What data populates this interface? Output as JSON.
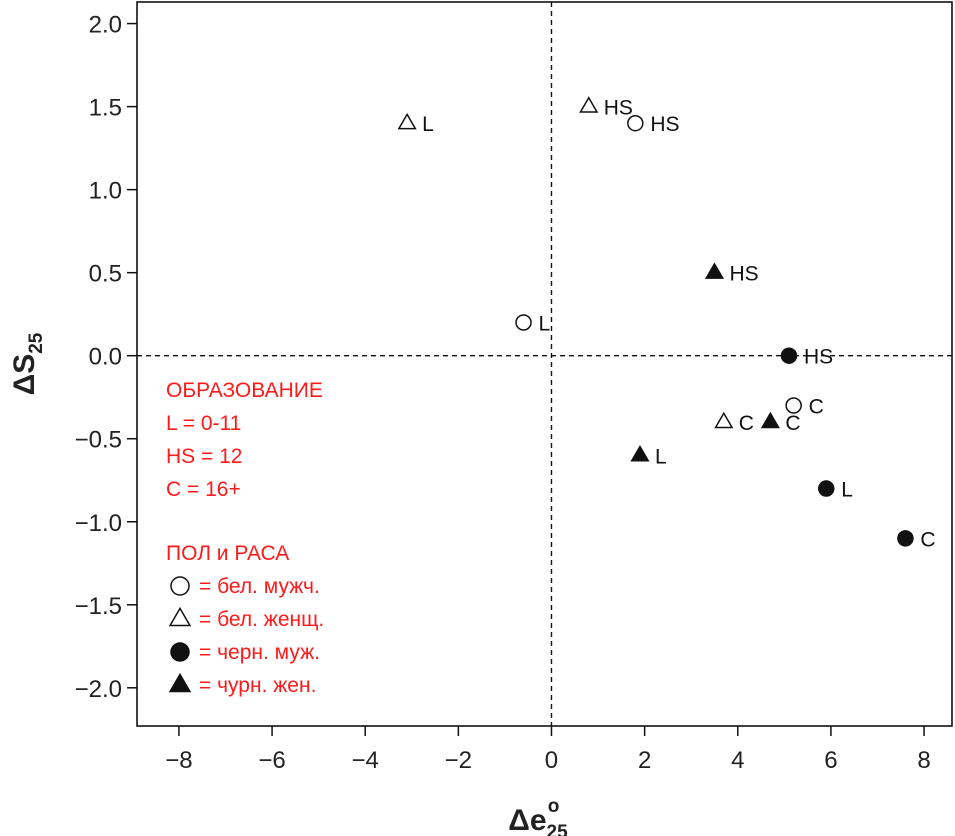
{
  "chart_data": {
    "type": "scatter",
    "xlabel": {
      "base": "Δe",
      "sup": "o",
      "sub": "25"
    },
    "ylabel": {
      "base": "ΔS",
      "sub": "25"
    },
    "xlim": [
      -8.9,
      8.6
    ],
    "ylim": [
      -2.23,
      2.13
    ],
    "xticks": [
      -8,
      -6,
      -4,
      -2,
      0,
      2,
      4,
      6,
      8
    ],
    "xtick_labels": [
      "−8",
      "−6",
      "−4",
      "−2",
      "0",
      "2",
      "4",
      "6",
      "8"
    ],
    "yticks": [
      2.0,
      1.5,
      1.0,
      0.5,
      0.0,
      -0.5,
      -1.0,
      -1.5,
      -2.0
    ],
    "ytick_labels": [
      "2.0",
      "1.5",
      "1.0",
      "0.5",
      "0.0",
      "−0.5",
      "−1.0",
      "−1.5",
      "−2.0"
    ],
    "reference_lines": {
      "x": 0,
      "y": 0,
      "style": "dashed"
    },
    "points": [
      {
        "x": -3.1,
        "y": 1.4,
        "label": "L",
        "group": "white_female"
      },
      {
        "x": 0.8,
        "y": 1.5,
        "label": "HS",
        "group": "white_female"
      },
      {
        "x": 1.8,
        "y": 1.4,
        "label": "HS",
        "group": "white_male"
      },
      {
        "x": 3.5,
        "y": 0.5,
        "label": "HS",
        "group": "black_female"
      },
      {
        "x": -0.6,
        "y": 0.2,
        "label": "L",
        "group": "white_male"
      },
      {
        "x": 5.1,
        "y": 0.0,
        "label": "HS",
        "group": "black_male"
      },
      {
        "x": 5.2,
        "y": -0.3,
        "label": "C",
        "group": "white_male"
      },
      {
        "x": 3.7,
        "y": -0.4,
        "label": "C",
        "group": "white_female"
      },
      {
        "x": 4.7,
        "y": -0.4,
        "label": "C",
        "group": "black_female"
      },
      {
        "x": 1.9,
        "y": -0.6,
        "label": "L",
        "group": "black_female"
      },
      {
        "x": 5.9,
        "y": -0.8,
        "label": "L",
        "group": "black_male"
      },
      {
        "x": 7.6,
        "y": -1.1,
        "label": "C",
        "group": "black_male"
      }
    ],
    "groups": {
      "white_male": {
        "marker": "circle",
        "filled": false
      },
      "white_female": {
        "marker": "triangle",
        "filled": false
      },
      "black_male": {
        "marker": "circle",
        "filled": true
      },
      "black_female": {
        "marker": "triangle",
        "filled": true
      }
    },
    "legend": {
      "placement": "bottom-left",
      "color": "#ff1a1a",
      "education_title": "ОБРАЗОВАНИЕ",
      "education_items": [
        "L = 0-11",
        "HS = 12",
        "C = 16+"
      ],
      "group_title": "ПОЛ и РАСА",
      "group_items": [
        {
          "group": "white_male",
          "text": "= бел. мужч."
        },
        {
          "group": "white_female",
          "text": "= бел. женщ."
        },
        {
          "group": "black_male",
          "text": "= черн. муж."
        },
        {
          "group": "black_female",
          "text": "= чурн. жен."
        }
      ]
    }
  }
}
